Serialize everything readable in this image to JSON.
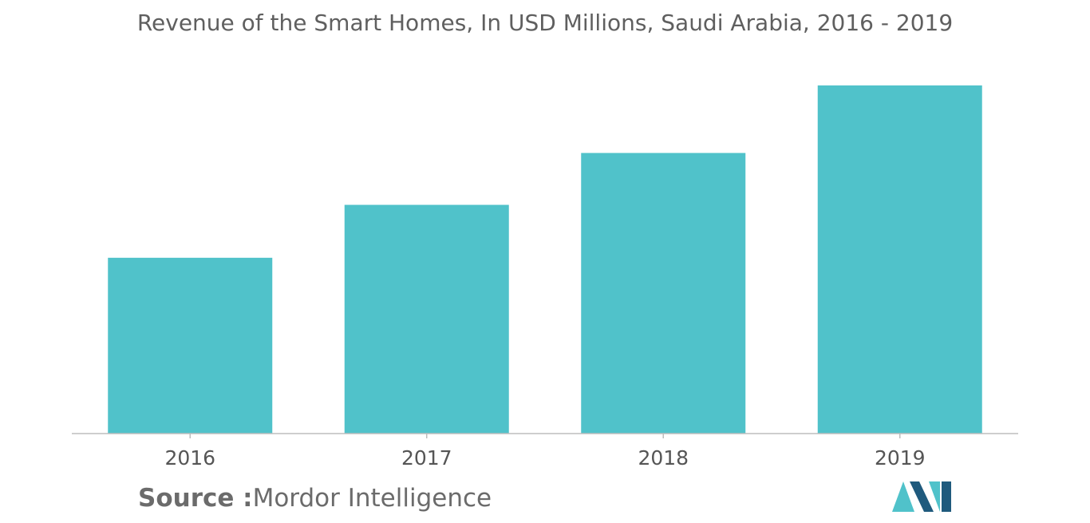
{
  "chart_data": {
    "type": "bar",
    "title": "Revenue of the Smart Homes, In USD Millions, Saudi Arabia, 2016 - 2019",
    "categories": [
      "2016",
      "2017",
      "2018",
      "2019"
    ],
    "values": [
      50.5,
      65.7,
      80.6,
      100
    ],
    "xlabel": "",
    "ylabel": "",
    "ylim": [
      0,
      100
    ],
    "grid": false,
    "legend": "none"
  },
  "colors": {
    "bar": "#50c2ca",
    "axis": "#bdbdbd",
    "tick_text": "#555555",
    "logo_dark": "#1f5a7d",
    "logo_light": "#50c2ca"
  },
  "source": {
    "label": "Source :",
    "value": "Mordor Intelligence"
  },
  "logo": {
    "icon": "mordor-intelligence-logo"
  }
}
